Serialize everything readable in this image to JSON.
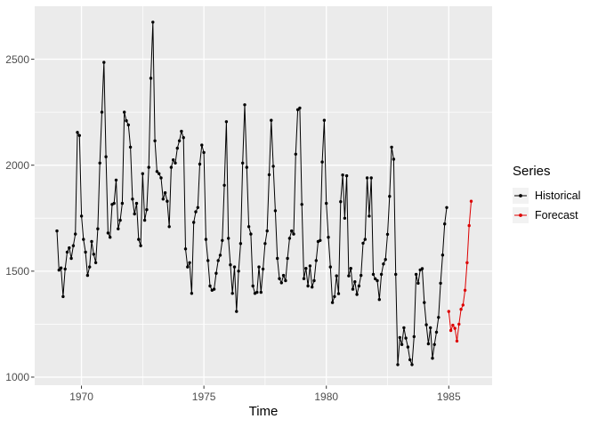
{
  "chart_data": {
    "type": "line",
    "title": "",
    "xlabel": "Time",
    "ylabel": "",
    "legend_title": "Series",
    "legend_position": "right",
    "grid": true,
    "panel_bg": "#EBEBEB",
    "grid_color": "#FFFFFF",
    "axis_text_color": "#4D4D4D",
    "legend_key_bg": "#F2F2F2",
    "x_axis": {
      "title": "Time",
      "domain": [
        1968.09,
        1986.77
      ],
      "ticks": [
        {
          "value": 1970,
          "label": "1970"
        },
        {
          "value": 1975,
          "label": "1975"
        },
        {
          "value": 1980,
          "label": "1980"
        },
        {
          "value": 1985,
          "label": "1985"
        }
      ],
      "minor": [
        1972.5,
        1977.5,
        1982.5
      ]
    },
    "y_axis": {
      "domain": [
        962,
        2750
      ],
      "ticks": [
        {
          "value": 1000,
          "label": "1000"
        },
        {
          "value": 1500,
          "label": "1500"
        },
        {
          "value": 2000,
          "label": "2000"
        },
        {
          "value": 2500,
          "label": "2500"
        }
      ],
      "minor": [
        1250,
        1750,
        2250
      ]
    },
    "series": [
      {
        "name": "Historical",
        "color": "#000000",
        "start": 1969,
        "frequency": 12,
        "values": [
          1690,
          1505,
          1515,
          1380,
          1510,
          1590,
          1610,
          1560,
          1620,
          1675,
          2155,
          2140,
          1760,
          1650,
          1590,
          1480,
          1520,
          1640,
          1580,
          1540,
          1700,
          2010,
          2250,
          2485,
          2040,
          1680,
          1660,
          1815,
          1820,
          1930,
          1700,
          1740,
          1820,
          2250,
          2210,
          2190,
          2085,
          1840,
          1770,
          1820,
          1650,
          1620,
          1960,
          1740,
          1790,
          1990,
          2410,
          2675,
          2115,
          1970,
          1960,
          1940,
          1840,
          1870,
          1830,
          1710,
          1990,
          2025,
          2010,
          2080,
          2115,
          2160,
          2130,
          1605,
          1520,
          1540,
          1395,
          1730,
          1780,
          1800,
          2005,
          2095,
          2060,
          1650,
          1550,
          1430,
          1410,
          1415,
          1490,
          1550,
          1575,
          1645,
          1905,
          2205,
          1655,
          1530,
          1395,
          1520,
          1310,
          1500,
          1630,
          2010,
          2285,
          1990,
          1710,
          1675,
          1430,
          1395,
          1400,
          1520,
          1400,
          1510,
          1630,
          1690,
          1955,
          2212,
          1995,
          1785,
          1560,
          1465,
          1445,
          1480,
          1455,
          1560,
          1655,
          1690,
          1675,
          2052,
          2262,
          2270,
          1815,
          1465,
          1513,
          1430,
          1525,
          1425,
          1455,
          1550,
          1640,
          1645,
          2015,
          2212,
          1820,
          1660,
          1520,
          1352,
          1380,
          1478,
          1394,
          1828,
          1954,
          1750,
          1950,
          1478,
          1513,
          1415,
          1450,
          1390,
          1430,
          1480,
          1632,
          1650,
          1940,
          1760,
          1940,
          1485,
          1464,
          1455,
          1366,
          1485,
          1534,
          1555,
          1674,
          1853,
          2085,
          2028,
          1485,
          1059,
          1187,
          1154,
          1233,
          1184,
          1142,
          1082,
          1059,
          1191,
          1485,
          1443,
          1506,
          1512,
          1352,
          1247,
          1157,
          1233,
          1089,
          1154,
          1212,
          1282,
          1443,
          1576,
          1723,
          1800
        ]
      },
      {
        "name": "Forecast",
        "color": "#DD0000",
        "start": 1985,
        "frequency": 12,
        "values": [
          1310,
          1220,
          1245,
          1230,
          1170,
          1250,
          1320,
          1340,
          1410,
          1540,
          1715,
          1830
        ]
      }
    ]
  }
}
